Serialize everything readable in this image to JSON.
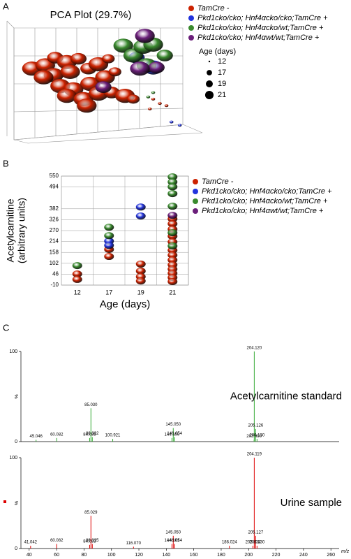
{
  "chart_data": [
    {
      "type": "scatter3d",
      "panel": "A",
      "title": "PCA Plot (29.7%)",
      "xlim": [
        0,
        100
      ],
      "ylim": [
        0,
        100
      ],
      "size_legend": {
        "title": "Age (days)",
        "values": [
          12,
          17,
          19,
          21
        ]
      },
      "series": [
        {
          "name": "TamCre -",
          "color": "#cc2200",
          "x": [
            10,
            18,
            24,
            31,
            38,
            23,
            33,
            44,
            50,
            56,
            17,
            27,
            35,
            45,
            54,
            60,
            31,
            41,
            50,
            58,
            66,
            43,
            71,
            83,
            87,
            91,
            81
          ],
          "values": [
            64,
            67,
            74,
            70,
            73,
            58,
            61,
            64,
            68,
            73,
            56,
            48,
            45,
            50,
            56,
            61,
            39,
            36,
            41,
            42,
            39,
            30,
            36,
            36,
            32,
            30,
            27
          ],
          "sizes": [
            21,
            21,
            19,
            21,
            19,
            21,
            21,
            19,
            21,
            17,
            21,
            21,
            21,
            21,
            21,
            17,
            21,
            21,
            21,
            19,
            21,
            21,
            17,
            12,
            12,
            12,
            12
          ]
        },
        {
          "name": "Pkd1cko/cko; Hnf4αcko/cko;TamCre +",
          "color": "#2233dd",
          "x": [
            83,
            73,
            94,
            99
          ],
          "values": [
            65,
            74,
            15,
            12
          ],
          "sizes": [
            21,
            19,
            12,
            12
          ]
        },
        {
          "name": "Pkd1cko/cko; Hnf4αcko/wt;TamCre +",
          "color": "#3a8a2e",
          "x": [
            65,
            71,
            77,
            83,
            90,
            79,
            83,
            80
          ],
          "values": [
            85,
            76,
            84,
            86,
            76,
            67,
            42,
            38
          ],
          "sizes": [
            21,
            21,
            21,
            21,
            19,
            21,
            12,
            12
          ]
        },
        {
          "name": "Pkd1cko/cko; Hnf4αwt/wt;TamCre +",
          "color": "#6b1f7a",
          "x": [
            78,
            85,
            75,
            53
          ],
          "values": [
            94,
            65,
            64,
            47
          ],
          "sizes": [
            21,
            19,
            21,
            19
          ]
        }
      ]
    },
    {
      "type": "strip",
      "panel": "B",
      "ylabel": [
        "Acetylcarnitine",
        "(arbitrary units)"
      ],
      "xlabel": "Age (days)",
      "categories": [
        12,
        17,
        19,
        21
      ],
      "ylim": [
        -10,
        550
      ],
      "yticks": [
        -10,
        46,
        102,
        158,
        214,
        270,
        326,
        382,
        494,
        550
      ],
      "grid": true,
      "series": [
        {
          "name": "TamCre -",
          "color": "#cc2200",
          "x": [
            12,
            12,
            17,
            17,
            19,
            19,
            19,
            19,
            21,
            21,
            21,
            21,
            21,
            21,
            21,
            21,
            21,
            21,
            21,
            21,
            21
          ],
          "values": [
            47,
            19,
            173,
            137,
            98,
            62,
            33,
            11,
            330,
            305,
            277,
            241,
            212,
            169,
            144,
            119,
            94,
            72,
            51,
            29,
            8
          ]
        },
        {
          "name": "Pkd1cko/cko; Hnf4αcko/cko;TamCre +",
          "color": "#2233dd",
          "x": [
            17,
            17,
            19,
            19
          ],
          "values": [
            216,
            194,
            391,
            345
          ]
        },
        {
          "name": "Pkd1cko/cko; Hnf4αcko/wt;TamCre +",
          "color": "#3a8a2e",
          "x": [
            12,
            17,
            17,
            21,
            21,
            21,
            21,
            21,
            21,
            21
          ],
          "values": [
            90,
            287,
            244,
            546,
            520,
            495,
            460,
            395,
            259,
            191
          ]
        },
        {
          "name": "Pkd1cko/cko; Hnf4αwt/wt;TamCre +",
          "color": "#6b1f7a",
          "x": [
            21
          ],
          "values": [
            348
          ]
        }
      ]
    },
    {
      "type": "spectrum",
      "panel": "C",
      "annotation": "Acetylcarnitine standard",
      "color": "#33aa33",
      "ylabel": "%",
      "xlim": [
        34,
        266
      ],
      "ylim": [
        0,
        100
      ],
      "yticks": [
        0,
        100
      ],
      "x": [
        45.046,
        60.082,
        84.085,
        85.03,
        86.032,
        100.921,
        144.1,
        145.05,
        146.054,
        203.99,
        204.12,
        205.126,
        206.13
      ],
      "x_labels": [
        "45.046",
        "60.082",
        "84.085",
        "85.030",
        "86.032",
        "100.921",
        "144.100",
        "145.050",
        "146.054",
        "203.990",
        "204.120",
        "205.126",
        "206.130"
      ],
      "values": [
        2,
        4,
        4,
        37,
        5,
        3,
        4,
        15,
        5,
        2,
        100,
        14,
        3
      ]
    },
    {
      "type": "spectrum",
      "annotation": "Urine sample",
      "color": "#dd0000",
      "ylabel": "%",
      "xlabel": "m/z",
      "xlim": [
        34,
        266
      ],
      "ylim": [
        0,
        100
      ],
      "yticks": [
        0,
        100
      ],
      "xticks": [
        40,
        60,
        80,
        100,
        120,
        140,
        160,
        180,
        200,
        220,
        240,
        260
      ],
      "x": [
        41.042,
        60.082,
        84.083,
        85.029,
        86.035,
        116.07,
        144.101,
        145.05,
        146.054,
        186.024,
        203.134,
        204.119,
        205.127,
        206.13
      ],
      "x_labels": [
        "41.042",
        "60.082",
        "84.083",
        "85.029",
        "86.035",
        "116.070",
        "144.101",
        "145.050",
        "146.054",
        "186.024",
        "203.134",
        "204.119",
        "205.127",
        "206.130"
      ],
      "values": [
        3,
        5,
        4,
        36,
        5,
        2,
        5,
        14,
        5,
        3,
        3,
        100,
        14,
        3
      ]
    }
  ]
}
